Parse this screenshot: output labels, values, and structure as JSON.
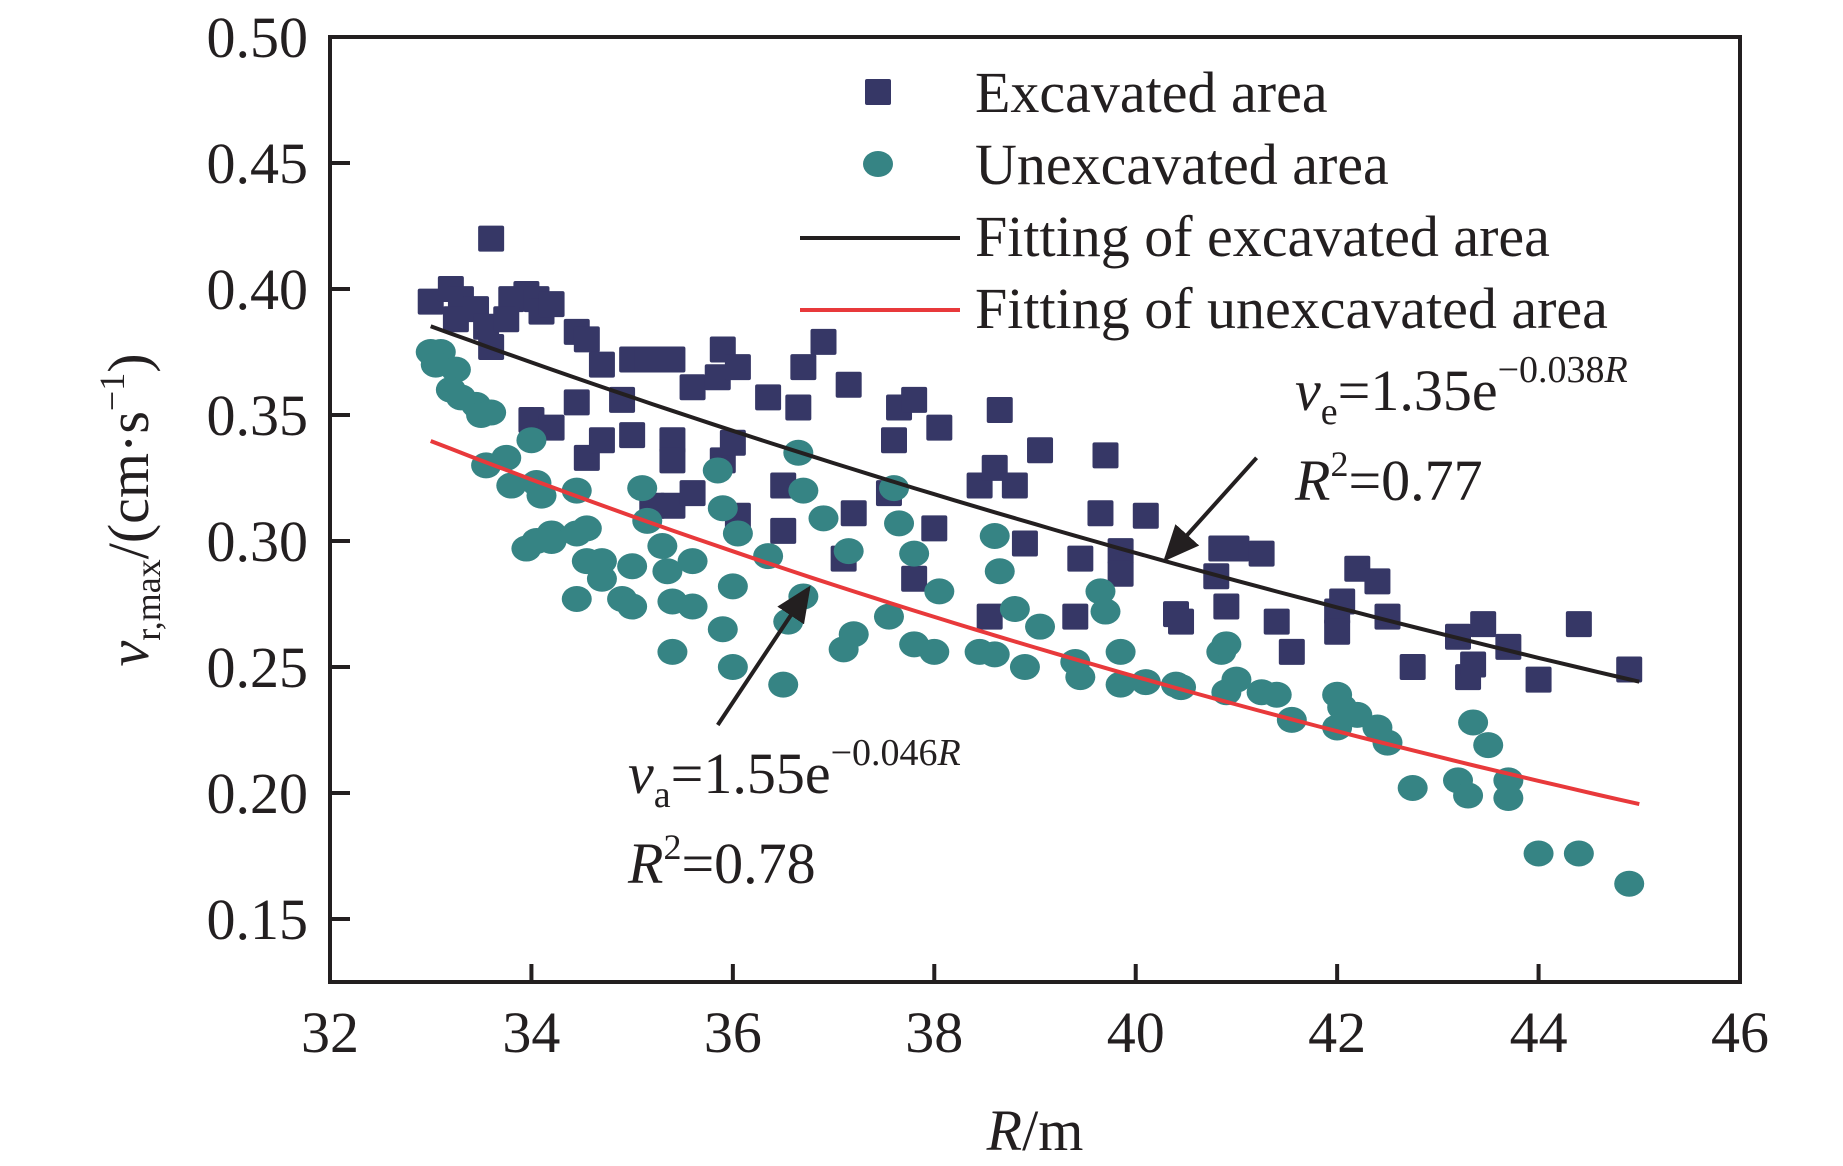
{
  "chart_data": {
    "type": "scatter",
    "title": "",
    "xlabel": {
      "italic": "R",
      "rest": "/m"
    },
    "ylabel": {
      "var": "v",
      "sub": "r,max",
      "unit": "/(cm·s",
      "unit_sup": "−1",
      "unit_close": ")"
    },
    "xlim": [
      32,
      46
    ],
    "ylim": [
      0.125,
      0.5
    ],
    "xticks": [
      32,
      34,
      36,
      38,
      40,
      42,
      44,
      46
    ],
    "yticks": [
      0.15,
      0.2,
      0.25,
      0.3,
      0.35,
      0.4,
      0.45,
      0.5
    ],
    "xtick_labels": [
      "32",
      "34",
      "36",
      "38",
      "40",
      "42",
      "44",
      "46"
    ],
    "ytick_labels": [
      "0.15",
      "0.20",
      "0.25",
      "0.30",
      "0.35",
      "0.40",
      "0.45",
      "0.50"
    ],
    "grid": false,
    "legend": {
      "placement": "top-right",
      "entries": [
        {
          "label": "Excavated area",
          "marker": "square",
          "color": "#363766"
        },
        {
          "label": "Unexcavated area",
          "marker": "circle",
          "color": "#368484"
        },
        {
          "label": "Fitting of excavated area",
          "marker": "line",
          "color": "#231f20"
        },
        {
          "label": "Fitting of unexcavated area",
          "marker": "line",
          "color": "#e8393b"
        }
      ]
    },
    "series": [
      {
        "name": "Excavated area",
        "marker": "square",
        "color": "#363766",
        "points": [
          [
            33.0,
            0.395
          ],
          [
            33.2,
            0.4
          ],
          [
            33.3,
            0.396
          ],
          [
            33.25,
            0.388
          ],
          [
            33.6,
            0.42
          ],
          [
            33.45,
            0.392
          ],
          [
            33.55,
            0.385
          ],
          [
            33.6,
            0.377
          ],
          [
            33.8,
            0.396
          ],
          [
            33.75,
            0.388
          ],
          [
            33.95,
            0.398
          ],
          [
            34.05,
            0.396
          ],
          [
            34.1,
            0.391
          ],
          [
            34.2,
            0.394
          ],
          [
            34.0,
            0.348
          ],
          [
            34.2,
            0.345
          ],
          [
            34.45,
            0.383
          ],
          [
            34.55,
            0.38
          ],
          [
            34.45,
            0.355
          ],
          [
            34.55,
            0.333
          ],
          [
            34.7,
            0.37
          ],
          [
            34.7,
            0.34
          ],
          [
            34.9,
            0.356
          ],
          [
            35.0,
            0.342
          ],
          [
            35.0,
            0.372
          ],
          [
            35.15,
            0.372
          ],
          [
            35.3,
            0.372
          ],
          [
            35.4,
            0.372
          ],
          [
            35.4,
            0.34
          ],
          [
            35.4,
            0.332
          ],
          [
            35.2,
            0.314
          ],
          [
            35.4,
            0.314
          ],
          [
            35.6,
            0.319
          ],
          [
            35.6,
            0.361
          ],
          [
            35.9,
            0.376
          ],
          [
            35.85,
            0.365
          ],
          [
            36.05,
            0.369
          ],
          [
            35.9,
            0.332
          ],
          [
            36.0,
            0.339
          ],
          [
            36.05,
            0.31
          ],
          [
            36.35,
            0.357
          ],
          [
            36.5,
            0.322
          ],
          [
            36.5,
            0.304
          ],
          [
            36.65,
            0.353
          ],
          [
            36.7,
            0.369
          ],
          [
            36.9,
            0.379
          ],
          [
            37.15,
            0.362
          ],
          [
            37.2,
            0.311
          ],
          [
            37.1,
            0.293
          ],
          [
            37.6,
            0.34
          ],
          [
            37.65,
            0.353
          ],
          [
            37.8,
            0.356
          ],
          [
            37.55,
            0.319
          ],
          [
            37.8,
            0.285
          ],
          [
            38.0,
            0.305
          ],
          [
            38.05,
            0.345
          ],
          [
            38.45,
            0.322
          ],
          [
            38.6,
            0.329
          ],
          [
            38.65,
            0.352
          ],
          [
            38.8,
            0.322
          ],
          [
            38.55,
            0.27
          ],
          [
            38.9,
            0.299
          ],
          [
            39.05,
            0.336
          ],
          [
            39.4,
            0.27
          ],
          [
            39.45,
            0.293
          ],
          [
            39.65,
            0.311
          ],
          [
            39.7,
            0.334
          ],
          [
            39.85,
            0.296
          ],
          [
            39.85,
            0.287
          ],
          [
            40.1,
            0.31
          ],
          [
            40.4,
            0.271
          ],
          [
            40.45,
            0.268
          ],
          [
            40.85,
            0.297
          ],
          [
            40.8,
            0.286
          ],
          [
            40.9,
            0.274
          ],
          [
            41.0,
            0.297
          ],
          [
            41.25,
            0.295
          ],
          [
            41.4,
            0.268
          ],
          [
            41.55,
            0.256
          ],
          [
            42.0,
            0.272
          ],
          [
            42.0,
            0.264
          ],
          [
            42.05,
            0.276
          ],
          [
            42.2,
            0.289
          ],
          [
            42.4,
            0.284
          ],
          [
            42.5,
            0.27
          ],
          [
            42.75,
            0.25
          ],
          [
            43.2,
            0.262
          ],
          [
            43.3,
            0.246
          ],
          [
            43.35,
            0.251
          ],
          [
            43.45,
            0.267
          ],
          [
            43.7,
            0.258
          ],
          [
            44.0,
            0.245
          ],
          [
            44.4,
            0.267
          ],
          [
            44.9,
            0.249
          ]
        ]
      },
      {
        "name": "Unexcavated area",
        "marker": "circle",
        "color": "#368484",
        "points": [
          [
            33.0,
            0.375
          ],
          [
            33.1,
            0.375
          ],
          [
            33.05,
            0.37
          ],
          [
            33.25,
            0.368
          ],
          [
            33.2,
            0.36
          ],
          [
            33.3,
            0.357
          ],
          [
            33.45,
            0.354
          ],
          [
            33.5,
            0.35
          ],
          [
            33.6,
            0.351
          ],
          [
            33.55,
            0.33
          ],
          [
            33.75,
            0.333
          ],
          [
            33.8,
            0.322
          ],
          [
            34.0,
            0.34
          ],
          [
            34.05,
            0.323
          ],
          [
            34.1,
            0.318
          ],
          [
            33.95,
            0.297
          ],
          [
            34.05,
            0.3
          ],
          [
            34.2,
            0.303
          ],
          [
            34.2,
            0.3
          ],
          [
            34.45,
            0.303
          ],
          [
            34.55,
            0.305
          ],
          [
            34.45,
            0.32
          ],
          [
            34.55,
            0.292
          ],
          [
            34.45,
            0.277
          ],
          [
            34.7,
            0.292
          ],
          [
            34.7,
            0.285
          ],
          [
            34.9,
            0.277
          ],
          [
            35.0,
            0.274
          ],
          [
            35.0,
            0.29
          ],
          [
            35.1,
            0.321
          ],
          [
            35.15,
            0.308
          ],
          [
            35.3,
            0.298
          ],
          [
            35.35,
            0.288
          ],
          [
            35.4,
            0.276
          ],
          [
            35.4,
            0.256
          ],
          [
            35.6,
            0.292
          ],
          [
            35.6,
            0.274
          ],
          [
            35.85,
            0.328
          ],
          [
            35.9,
            0.313
          ],
          [
            35.9,
            0.265
          ],
          [
            36.0,
            0.282
          ],
          [
            36.05,
            0.303
          ],
          [
            36.0,
            0.25
          ],
          [
            36.35,
            0.294
          ],
          [
            36.5,
            0.243
          ],
          [
            36.55,
            0.268
          ],
          [
            36.65,
            0.335
          ],
          [
            36.7,
            0.32
          ],
          [
            36.7,
            0.278
          ],
          [
            36.9,
            0.309
          ],
          [
            37.15,
            0.296
          ],
          [
            37.2,
            0.263
          ],
          [
            37.1,
            0.257
          ],
          [
            37.55,
            0.27
          ],
          [
            37.6,
            0.321
          ],
          [
            37.65,
            0.307
          ],
          [
            37.8,
            0.295
          ],
          [
            37.8,
            0.259
          ],
          [
            38.0,
            0.256
          ],
          [
            38.05,
            0.28
          ],
          [
            38.45,
            0.256
          ],
          [
            38.6,
            0.255
          ],
          [
            38.6,
            0.302
          ],
          [
            38.65,
            0.288
          ],
          [
            38.8,
            0.273
          ],
          [
            38.9,
            0.25
          ],
          [
            39.05,
            0.266
          ],
          [
            39.4,
            0.252
          ],
          [
            39.45,
            0.246
          ],
          [
            39.65,
            0.28
          ],
          [
            39.7,
            0.272
          ],
          [
            39.85,
            0.256
          ],
          [
            39.85,
            0.243
          ],
          [
            40.1,
            0.244
          ],
          [
            40.4,
            0.243
          ],
          [
            40.45,
            0.242
          ],
          [
            40.85,
            0.256
          ],
          [
            40.9,
            0.259
          ],
          [
            40.9,
            0.24
          ],
          [
            41.0,
            0.245
          ],
          [
            41.25,
            0.24
          ],
          [
            41.4,
            0.239
          ],
          [
            41.55,
            0.229
          ],
          [
            42.0,
            0.239
          ],
          [
            42.0,
            0.226
          ],
          [
            42.05,
            0.234
          ],
          [
            42.2,
            0.231
          ],
          [
            42.4,
            0.226
          ],
          [
            42.5,
            0.22
          ],
          [
            42.75,
            0.202
          ],
          [
            43.2,
            0.205
          ],
          [
            43.3,
            0.199
          ],
          [
            43.35,
            0.228
          ],
          [
            43.5,
            0.219
          ],
          [
            43.7,
            0.205
          ],
          [
            43.7,
            0.198
          ],
          [
            44.0,
            0.176
          ],
          [
            44.4,
            0.176
          ],
          [
            44.9,
            0.164
          ]
        ]
      }
    ],
    "fits": [
      {
        "name": "Fitting of excavated area",
        "a": 1.35,
        "b": -0.038,
        "x_range": [
          33.0,
          45.0
        ],
        "color": "#231f20"
      },
      {
        "name": "Fitting of unexcavated area",
        "a": 1.55,
        "b": -0.046,
        "x_range": [
          33.0,
          45.0
        ],
        "color": "#e8393b"
      }
    ],
    "annotations": [
      {
        "var": "v",
        "sub": "e",
        "eq": "=1.35e",
        "exp": "−0.038",
        "exp_var": "R",
        "r2_label": "R",
        "r2_sup": "2",
        "r2_value": "=0.77",
        "points_to": [
          40.3,
          0.293
        ],
        "arrow_from": [
          41.2,
          0.333
        ]
      },
      {
        "var": "v",
        "sub": "a",
        "eq": "=1.55e",
        "exp": "−0.046",
        "exp_var": "R",
        "r2_label": "R",
        "r2_sup": "2",
        "r2_value": "=0.78",
        "points_to": [
          36.75,
          0.281
        ],
        "arrow_from": [
          35.85,
          0.227
        ]
      }
    ]
  }
}
